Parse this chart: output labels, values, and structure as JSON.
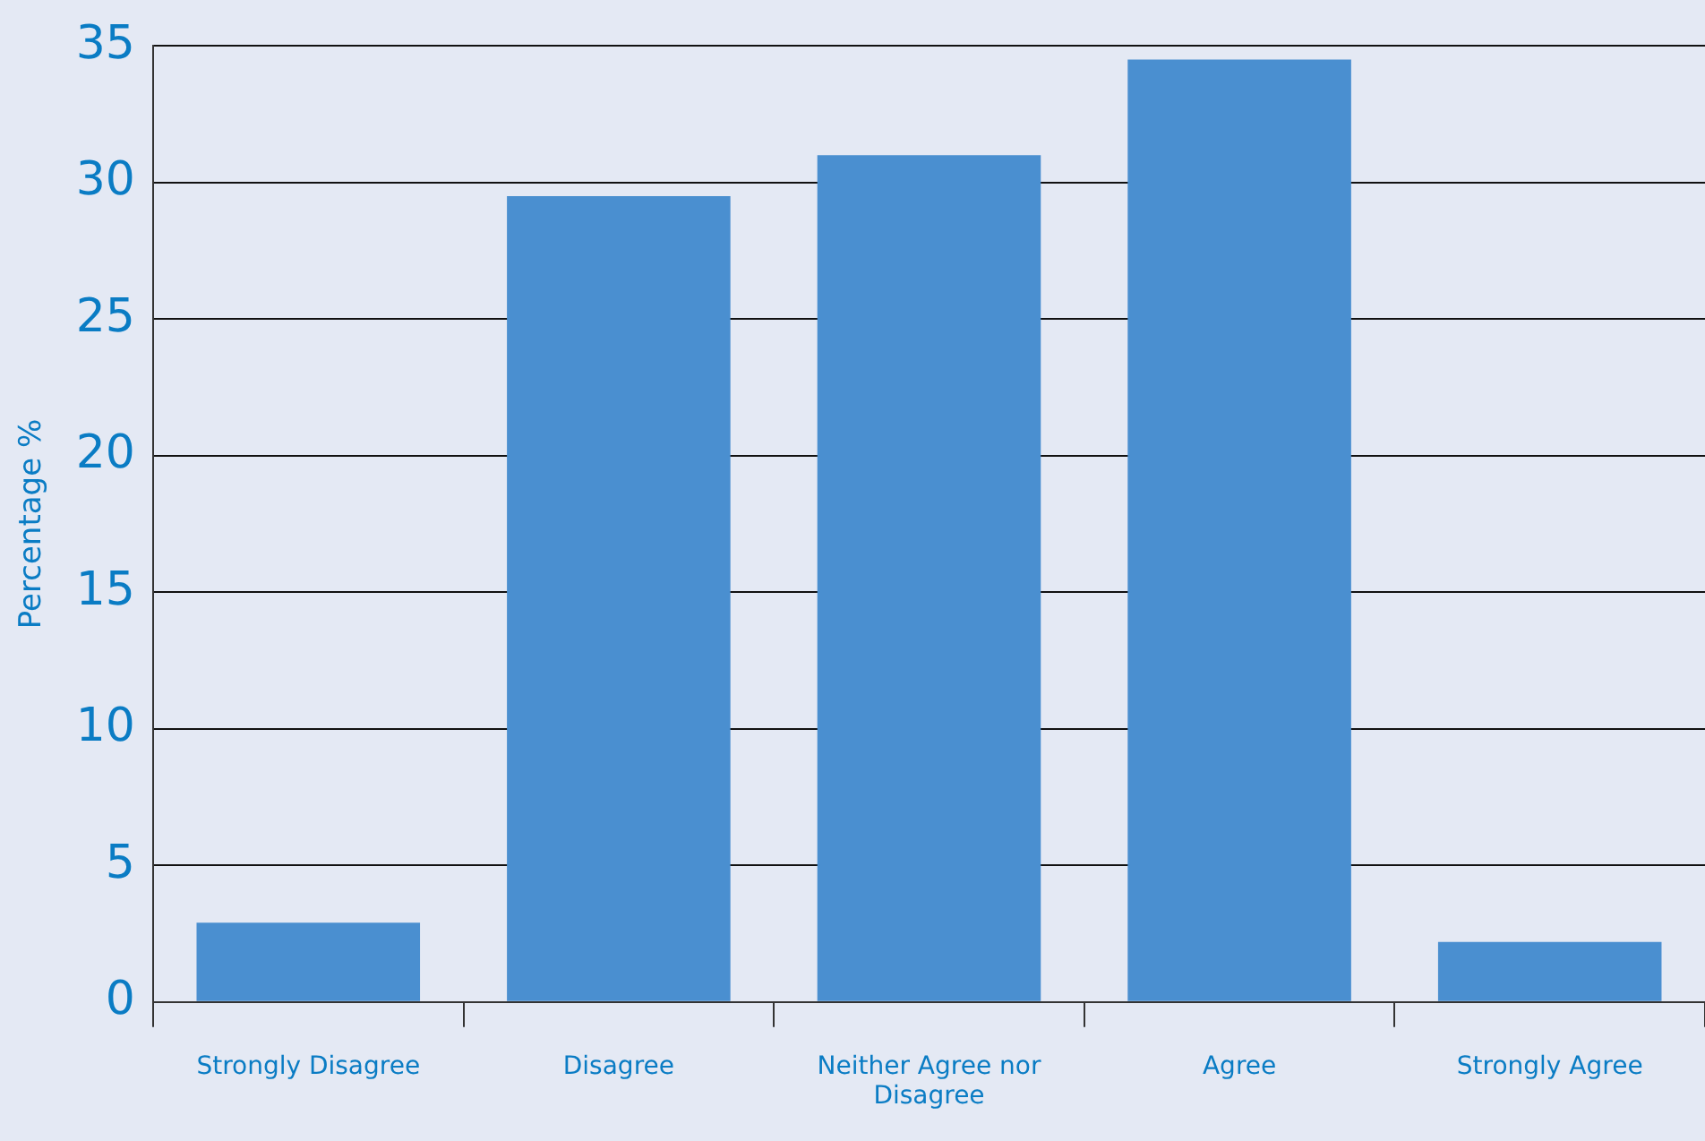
{
  "chart_data": {
    "type": "bar",
    "ylabel": "Percentage %",
    "categories": [
      "Strongly Disagree",
      "Disagree",
      "Neither Agree nor Disagree",
      "Agree",
      "Strongly Agree"
    ],
    "values": [
      2.9,
      29.5,
      31.0,
      34.5,
      2.2
    ],
    "color": "#4a8fd0",
    "ylim": [
      0,
      35
    ],
    "yticks": [
      0,
      5,
      10,
      15,
      20,
      25,
      30,
      35
    ],
    "grid": "y",
    "legend": false
  }
}
